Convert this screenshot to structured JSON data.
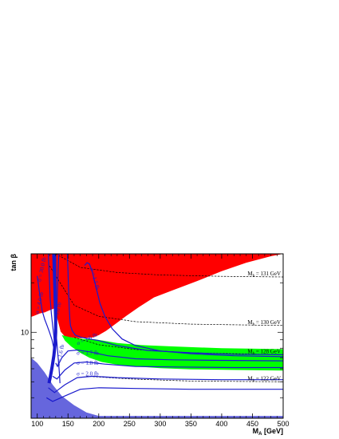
{
  "chart_data": {
    "type": "area",
    "title": "",
    "xlabel": "M",
    "xlabel_sub": "A",
    "xlabel_unit": "[GeV]",
    "ylabel": "tan β",
    "x_range": [
      90,
      500
    ],
    "y_range": [
      3,
      30
    ],
    "y_scale": "log",
    "x_ticks": [
      100,
      150,
      200,
      250,
      300,
      350,
      400,
      450,
      500
    ],
    "y_tick_labels": [
      {
        "value": 10,
        "label": "10"
      }
    ],
    "colors": {
      "excluded_red": "#ff0000",
      "band_green": "#00ff00",
      "excluded_blue": "#6666dd",
      "contour_blue": "#1a1acc"
    },
    "mh_contours": [
      {
        "label": "M",
        "sub": "h",
        "suffix": " = 131 GeV",
        "points": [
          [
            130,
            30
          ],
          [
            170,
            24.8
          ],
          [
            230,
            23.1
          ],
          [
            300,
            22.3
          ],
          [
            400,
            21.9
          ],
          [
            500,
            21.7
          ]
        ]
      },
      {
        "label": "M",
        "sub": "h",
        "suffix": " = 130 GeV",
        "points": [
          [
            120,
            25.3
          ],
          [
            160,
            14.6
          ],
          [
            200,
            12.5
          ],
          [
            260,
            11.6
          ],
          [
            350,
            11.2
          ],
          [
            500,
            11.0
          ]
        ]
      },
      {
        "label": "M",
        "sub": "h",
        "suffix": " = 128 GeV",
        "points": [
          [
            160,
            9.3
          ],
          [
            200,
            8.4
          ],
          [
            260,
            7.85
          ],
          [
            350,
            7.5
          ],
          [
            500,
            7.3
          ]
        ]
      },
      {
        "label": "M",
        "sub": "h",
        "suffix": " = 122 GeV",
        "points": [
          [
            180,
            5.4
          ],
          [
            250,
            5.2
          ],
          [
            350,
            5.05
          ],
          [
            500,
            5.0
          ]
        ]
      }
    ],
    "sigma_labels": [
      {
        "text": "σ = 30.0 fb",
        "x": 110,
        "y": 24,
        "angle": -78
      },
      {
        "text": "σ = 4.0 fb",
        "x": 106,
        "y": 15,
        "angle": -78
      },
      {
        "text": "σ = 3.0 fb",
        "x": 135,
        "y": 13,
        "angle": -78
      },
      {
        "text": "σ = 1.6 fb",
        "x": 140,
        "y": 7.2,
        "angle": -78
      },
      {
        "text": "σ = 1.5 fb",
        "x": 191,
        "y": 21,
        "angle": 75
      },
      {
        "text": "σ = 1.6 fb",
        "x": 182,
        "y": 8.9,
        "angle": -25
      },
      {
        "text": "σ = 1.7 fb",
        "x": 182,
        "y": 7.3,
        "angle": 0
      },
      {
        "text": "σ = 1.8 fb",
        "x": 182,
        "y": 6.35,
        "angle": 0
      },
      {
        "text": "σ = 2.0 fb",
        "x": 182,
        "y": 5.45,
        "angle": 0
      }
    ]
  }
}
